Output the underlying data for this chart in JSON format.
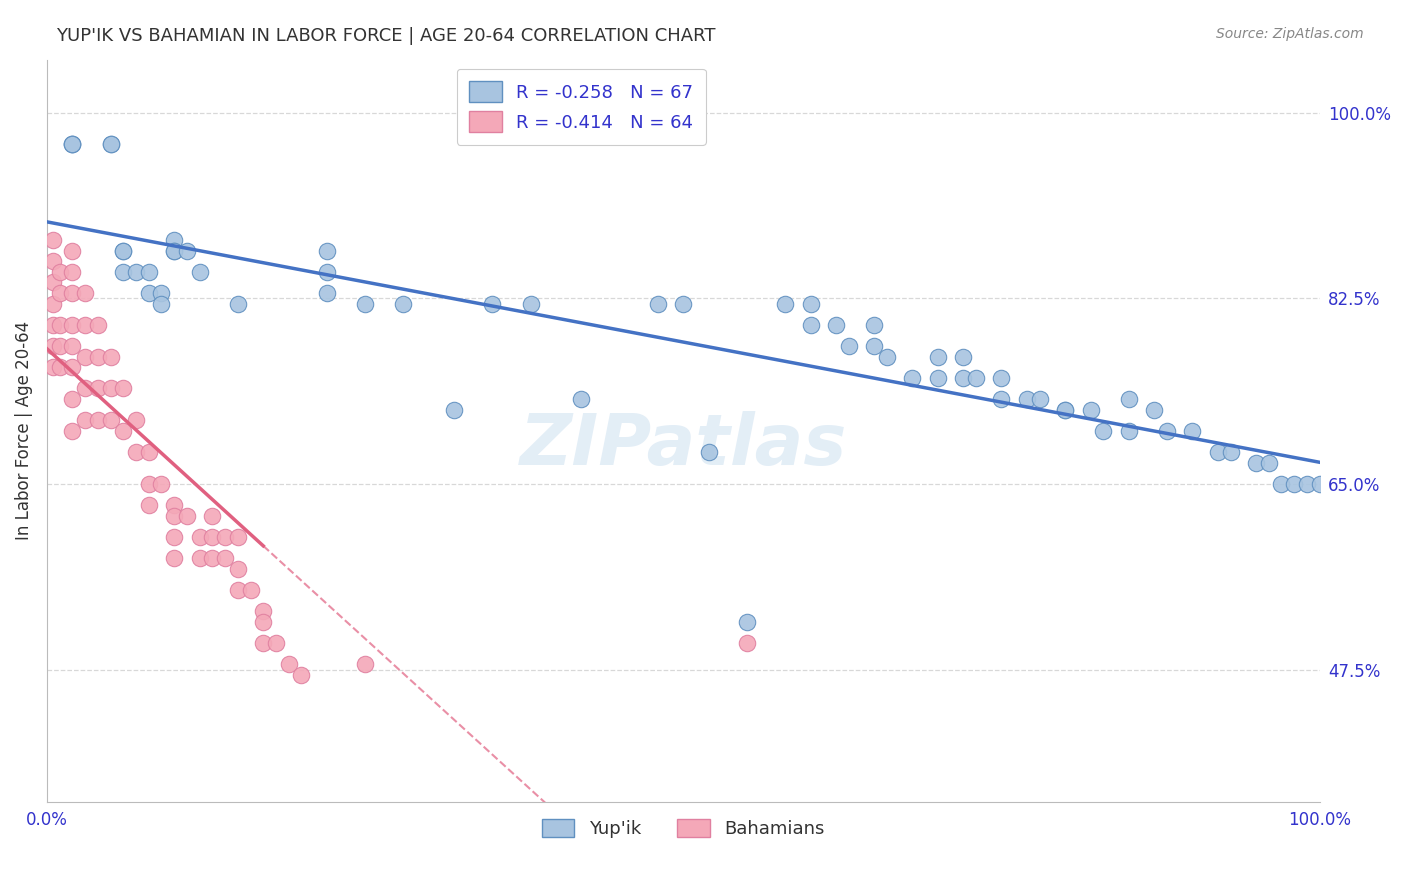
{
  "title": "YUP'IK VS BAHAMIAN IN LABOR FORCE | AGE 20-64 CORRELATION CHART",
  "source": "Source: ZipAtlas.com",
  "ylabel": "In Labor Force | Age 20-64",
  "xlim": [
    0.0,
    1.0
  ],
  "ylim": [
    0.35,
    1.05
  ],
  "yticks": [
    0.475,
    0.65,
    0.825,
    1.0
  ],
  "ytick_labels": [
    "47.5%",
    "65.0%",
    "82.5%",
    "100.0%"
  ],
  "xticks": [
    0.0,
    1.0
  ],
  "xtick_labels": [
    "0.0%",
    "100.0%"
  ],
  "watermark": "ZIPatlas",
  "blue_line_color": "#4472c4",
  "pink_line_color": "#e06080",
  "blue_dot_color": "#a8c4e0",
  "pink_dot_color": "#f4a8b8",
  "blue_dot_edge": "#6090c0",
  "pink_dot_edge": "#e080a0",
  "background_color": "#ffffff",
  "grid_color": "#d8d8d8",
  "title_color": "#333333",
  "axis_label_color": "#333333",
  "tick_color": "#3333cc",
  "source_color": "#888888",
  "yupik_x": [
    0.02,
    0.02,
    0.02,
    0.05,
    0.05,
    0.06,
    0.06,
    0.06,
    0.07,
    0.08,
    0.08,
    0.09,
    0.09,
    0.1,
    0.1,
    0.1,
    0.11,
    0.12,
    0.15,
    0.22,
    0.22,
    0.22,
    0.25,
    0.28,
    0.32,
    0.35,
    0.38,
    0.42,
    0.48,
    0.5,
    0.52,
    0.55,
    0.58,
    0.6,
    0.6,
    0.62,
    0.63,
    0.65,
    0.65,
    0.66,
    0.68,
    0.7,
    0.7,
    0.72,
    0.72,
    0.73,
    0.75,
    0.75,
    0.77,
    0.78,
    0.8,
    0.8,
    0.82,
    0.83,
    0.85,
    0.85,
    0.87,
    0.88,
    0.9,
    0.92,
    0.93,
    0.95,
    0.96,
    0.97,
    0.98,
    0.99,
    1.0
  ],
  "yupik_y": [
    0.97,
    0.97,
    0.97,
    0.97,
    0.97,
    0.87,
    0.87,
    0.85,
    0.85,
    0.85,
    0.83,
    0.83,
    0.82,
    0.88,
    0.87,
    0.87,
    0.87,
    0.85,
    0.82,
    0.87,
    0.85,
    0.83,
    0.82,
    0.82,
    0.72,
    0.82,
    0.82,
    0.73,
    0.82,
    0.82,
    0.68,
    0.52,
    0.82,
    0.82,
    0.8,
    0.8,
    0.78,
    0.8,
    0.78,
    0.77,
    0.75,
    0.77,
    0.75,
    0.77,
    0.75,
    0.75,
    0.75,
    0.73,
    0.73,
    0.73,
    0.72,
    0.72,
    0.72,
    0.7,
    0.73,
    0.7,
    0.72,
    0.7,
    0.7,
    0.68,
    0.68,
    0.67,
    0.67,
    0.65,
    0.65,
    0.65,
    0.65
  ],
  "bahamian_x": [
    0.005,
    0.005,
    0.005,
    0.005,
    0.005,
    0.005,
    0.005,
    0.01,
    0.01,
    0.01,
    0.01,
    0.01,
    0.02,
    0.02,
    0.02,
    0.02,
    0.02,
    0.02,
    0.02,
    0.02,
    0.03,
    0.03,
    0.03,
    0.03,
    0.03,
    0.04,
    0.04,
    0.04,
    0.04,
    0.05,
    0.05,
    0.05,
    0.06,
    0.06,
    0.07,
    0.07,
    0.08,
    0.08,
    0.08,
    0.09,
    0.1,
    0.1,
    0.1,
    0.1,
    0.11,
    0.12,
    0.12,
    0.13,
    0.13,
    0.13,
    0.14,
    0.14,
    0.15,
    0.15,
    0.15,
    0.16,
    0.17,
    0.17,
    0.17,
    0.18,
    0.19,
    0.2,
    0.25,
    0.55
  ],
  "bahamian_y": [
    0.88,
    0.86,
    0.84,
    0.82,
    0.8,
    0.78,
    0.76,
    0.85,
    0.83,
    0.8,
    0.78,
    0.76,
    0.87,
    0.85,
    0.83,
    0.8,
    0.78,
    0.76,
    0.73,
    0.7,
    0.83,
    0.8,
    0.77,
    0.74,
    0.71,
    0.8,
    0.77,
    0.74,
    0.71,
    0.77,
    0.74,
    0.71,
    0.74,
    0.7,
    0.71,
    0.68,
    0.68,
    0.65,
    0.63,
    0.65,
    0.63,
    0.62,
    0.6,
    0.58,
    0.62,
    0.6,
    0.58,
    0.62,
    0.6,
    0.58,
    0.6,
    0.58,
    0.6,
    0.57,
    0.55,
    0.55,
    0.53,
    0.52,
    0.5,
    0.5,
    0.48,
    0.47,
    0.48,
    0.5
  ]
}
